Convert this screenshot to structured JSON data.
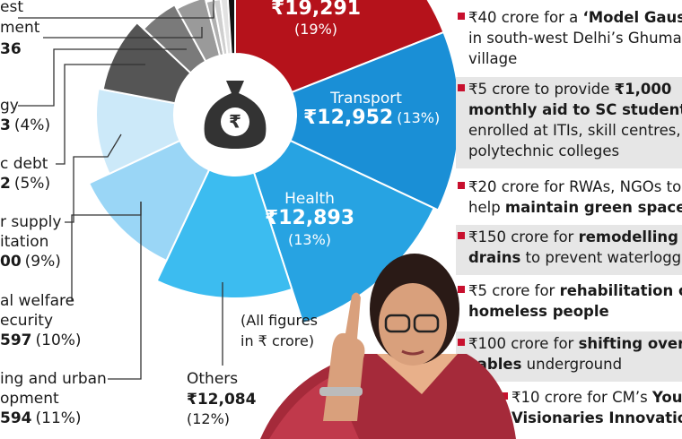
{
  "chart": {
    "segments": [
      {
        "value_label": "₹19,291",
        "percent": 19,
        "pct_label": "(19%)"
      },
      {
        "name": "Transport",
        "value_label": "₹12,952",
        "percent": 13,
        "pct_label": "(13%)"
      },
      {
        "name": "Health",
        "value_label": "₹12,893",
        "percent": 13,
        "pct_label": "(13%)"
      },
      {
        "name": "Others",
        "value_label": "₹12,084",
        "percent": 12,
        "pct_label": "(12%)"
      },
      {
        "name_lines": [
          "ing and urban",
          "opment"
        ],
        "value_label": "594",
        "percent": 11,
        "pct_label": "(11%)"
      },
      {
        "name_lines": [
          "al welfare",
          "ecurity"
        ],
        "value_label": "597",
        "percent": 10,
        "pct_label": "(10%)"
      },
      {
        "name_lines": [
          "r supply",
          "itation"
        ],
        "value_label": "00",
        "percent": 9,
        "pct_label": "(9%)"
      },
      {
        "name_lines": [
          "c debt"
        ],
        "value_label": "2",
        "percent": 5,
        "pct_label": "(5%)"
      },
      {
        "name_lines": [
          "gy"
        ],
        "value_label": "3",
        "percent": 4,
        "pct_label": "(4%)"
      }
    ],
    "extra_label": {
      "name_lines": [
        "est",
        "ment"
      ],
      "value_label": "36"
    },
    "note_lines": [
      "(All figures",
      "in ₹ crore)"
    ]
  },
  "announcements": [
    {
      "lines": [
        [
          {
            "t": "₹40 crore for a "
          },
          {
            "t": "‘Model Gaus",
            "b": true
          }
        ],
        [
          {
            "t": "in south-west Delhi’s Ghuman"
          }
        ],
        [
          {
            "t": "village"
          }
        ]
      ]
    },
    {
      "lines": [
        [
          {
            "t": "₹5 crore to provide "
          },
          {
            "t": "₹1,000",
            "b": true
          }
        ],
        [
          {
            "t": "monthly aid to SC students",
            "b": true
          }
        ],
        [
          {
            "t": "enrolled at ITIs, skill centres,"
          }
        ],
        [
          {
            "t": "polytechnic colleges"
          }
        ]
      ]
    },
    {
      "lines": [
        [
          {
            "t": "₹20 crore for RWAs, NGOs to"
          }
        ],
        [
          {
            "t": "help "
          },
          {
            "t": "maintain green spaces",
            "b": true
          }
        ]
      ]
    },
    {
      "lines": [
        [
          {
            "t": "₹150 crore for "
          },
          {
            "t": "remodelling",
            "b": true
          }
        ],
        [
          {
            "t": "drains",
            "b": true
          },
          {
            "t": " to prevent waterlogging"
          }
        ]
      ]
    },
    {
      "lines": [
        [
          {
            "t": "₹5 crore for "
          },
          {
            "t": "rehabilitation o",
            "b": true
          }
        ],
        [
          {
            "t": "homeless people",
            "b": true
          }
        ]
      ]
    },
    {
      "lines": [
        [
          {
            "t": "₹100 crore for "
          },
          {
            "t": "shifting overh",
            "b": true
          }
        ],
        [
          {
            "t": "cables",
            "b": true
          },
          {
            "t": " underground"
          }
        ]
      ]
    },
    {
      "lines": [
        [
          {
            "t": "₹10 crore for CM’s "
          },
          {
            "t": "Youn",
            "b": true
          }
        ],
        [
          {
            "t": "Visionaries Innovation",
            "b": true
          }
        ]
      ]
    }
  ]
}
